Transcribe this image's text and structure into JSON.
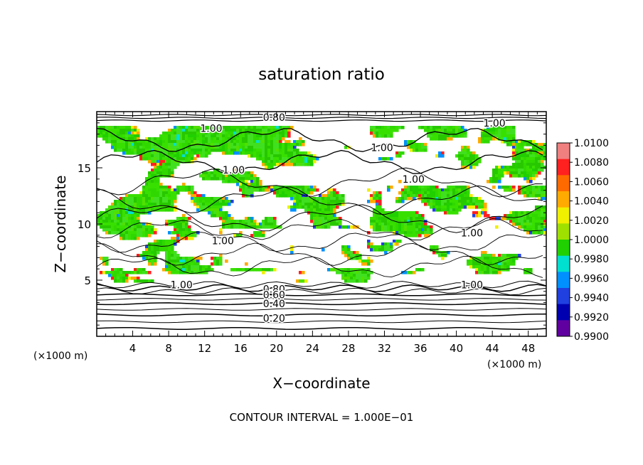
{
  "chart_data": {
    "type": "heatmap",
    "title": "saturation ratio",
    "xlabel": "X−coordinate",
    "ylabel": "Z−coordinate",
    "x_unit": "(×1000 m)",
    "y_unit": "(×1000 m)",
    "xlim": [
      0,
      50
    ],
    "ylim": [
      0,
      20
    ],
    "x_ticks": [
      4,
      8,
      12,
      16,
      20,
      24,
      28,
      32,
      36,
      40,
      44,
      48
    ],
    "y_ticks": [
      5,
      10,
      15
    ],
    "footer": "CONTOUR INTERVAL = 1.000E−01",
    "colorbar": {
      "range": [
        0.99,
        1.01
      ],
      "labels": [
        "1.0100",
        "1.0080",
        "1.0060",
        "1.0040",
        "1.0020",
        "1.0000",
        "0.9980",
        "0.9960",
        "0.9940",
        "0.9920",
        "0.9900"
      ],
      "colors": [
        "#f08080",
        "#ff2020",
        "#ff6a00",
        "#ffaa00",
        "#f0f000",
        "#a0e000",
        "#20d000",
        "#00e0d0",
        "#0090ff",
        "#2040e0",
        "#0000b0",
        "#6000a0"
      ]
    },
    "contour_labels": [
      {
        "text": "0.80",
        "x": 18.5,
        "z": 19.5
      },
      {
        "text": "1.00",
        "x": 11.5,
        "z": 18.5
      },
      {
        "text": "1.00",
        "x": 43.0,
        "z": 19.0
      },
      {
        "text": "1.00",
        "x": 30.5,
        "z": 16.8
      },
      {
        "text": "1.00",
        "x": 14.0,
        "z": 14.8
      },
      {
        "text": "1.00",
        "x": 34.0,
        "z": 14.0
      },
      {
        "text": "1.00",
        "x": 40.5,
        "z": 9.2
      },
      {
        "text": "1.00",
        "x": 12.8,
        "z": 8.5
      },
      {
        "text": "1.00",
        "x": 8.2,
        "z": 4.6
      },
      {
        "text": "1.00",
        "x": 40.5,
        "z": 4.6
      },
      {
        "text": "0.80",
        "x": 18.5,
        "z": 4.2
      },
      {
        "text": "0.60",
        "x": 18.5,
        "z": 3.7
      },
      {
        "text": "0.40",
        "x": 18.5,
        "z": 2.9
      },
      {
        "text": "0.20",
        "x": 18.5,
        "z": 1.6
      }
    ]
  }
}
